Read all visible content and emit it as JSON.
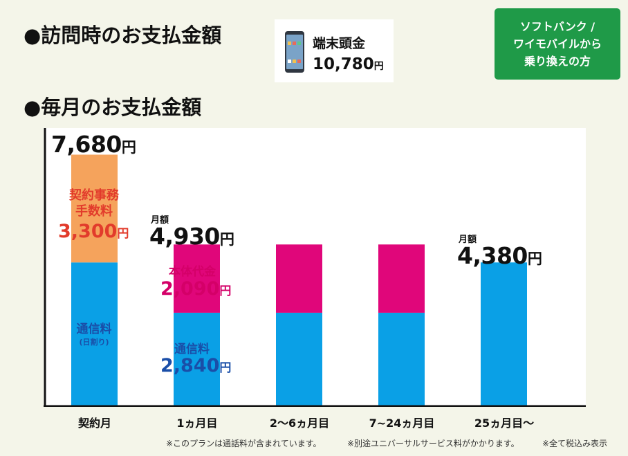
{
  "header": {
    "visit_title": "●訪問時のお支払金額",
    "monthly_title": "●毎月のお支払金額"
  },
  "device_payment": {
    "label": "端末頭金",
    "amount": "10,780",
    "yen": "円"
  },
  "badge": {
    "line1": "ソフトバンク /",
    "line2": "ワイモバイルから",
    "line3": "乗り換えの方"
  },
  "chart_data": {
    "type": "bar",
    "stacked": true,
    "categories": [
      "契約月",
      "1ヵ月目",
      "2～6ヵ月目",
      "7~24ヵ月目",
      "25ヵ月目～"
    ],
    "series": [
      {
        "key": "comm",
        "values": [
          4380,
          2840,
          2840,
          2840,
          4380
        ],
        "color": "#0aa0e6"
      },
      {
        "key": "device",
        "values": [
          0,
          2090,
          2090,
          2090,
          0
        ],
        "color": "#e0067a"
      },
      {
        "key": "fee",
        "values": [
          3300,
          0,
          0,
          0,
          0
        ],
        "color": "#f5a35c"
      }
    ],
    "ylim": [
      0,
      8800
    ]
  },
  "labels": {
    "m0_total": "7,680",
    "yen": "円",
    "fee_line1": "契約事務",
    "fee_line2": "手数料",
    "fee_amount": "3,300",
    "m0_comm_line1": "通信料",
    "m0_comm_line2": "(日割り)",
    "m1_caption": "月額",
    "m1_total": "4,930",
    "device_line": "本体代金",
    "device_amount": "2,090",
    "m1_comm_line": "通信料",
    "m1_comm_amount": "2,840",
    "m25_caption": "月額",
    "m25_total": "4,380"
  },
  "notes": {
    "n1": "※このプランは通話料が含まれています。",
    "n2": "※別途ユニバーサルサービス料がかかります。",
    "n3": "※全て税込み表示"
  }
}
